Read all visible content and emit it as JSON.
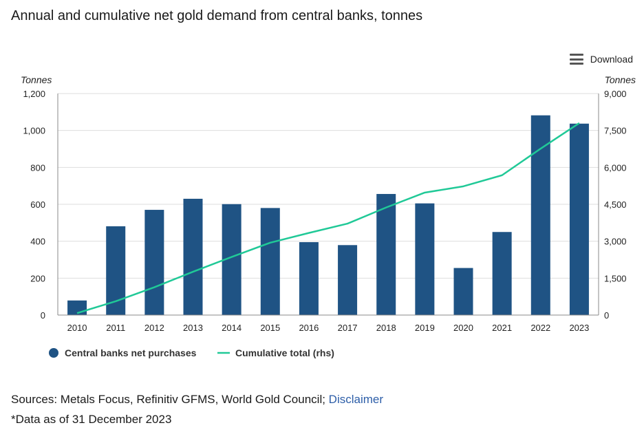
{
  "title": "Annual and cumulative net gold demand from central banks, tonnes",
  "download_label": "Download",
  "sources_text": "Sources: Metals Focus, Refinitiv GFMS, World Gold Council; ",
  "disclaimer_label": "Disclaimer",
  "note_text": "*Data as of 31 December 2023",
  "colors": {
    "bar": "#1f5384",
    "line": "#20c997",
    "grid": "#dddddd"
  },
  "chart_data": {
    "type": "bar",
    "categories": [
      "2010",
      "2011",
      "2012",
      "2013",
      "2014",
      "2015",
      "2016",
      "2017",
      "2018",
      "2019",
      "2020",
      "2021",
      "2022",
      "2023"
    ],
    "series": [
      {
        "name": "Central banks net purchases",
        "type": "bar",
        "axis": "left",
        "values": [
          79,
          481,
          570,
          630,
          601,
          580,
          395,
          379,
          656,
          605,
          255,
          450,
          1082,
          1037
        ]
      },
      {
        "name": "Cumulative total (rhs)",
        "type": "line",
        "axis": "right",
        "values": [
          79,
          560,
          1130,
          1760,
          2361,
          2941,
          3336,
          3715,
          4371,
          4976,
          5231,
          5681,
          6763,
          7800
        ]
      }
    ],
    "y_left": {
      "label": "Tonnes",
      "ylim": [
        0,
        1200
      ],
      "ticks": [
        "0",
        "200",
        "400",
        "600",
        "800",
        "1,000",
        "1,200"
      ]
    },
    "y_right": {
      "label": "Tonnes",
      "ylim": [
        0,
        9000
      ],
      "ticks": [
        "0",
        "1,500",
        "3,000",
        "4,500",
        "6,000",
        "7,500",
        "9,000"
      ]
    },
    "grid": true,
    "legend": "bottom-left"
  }
}
